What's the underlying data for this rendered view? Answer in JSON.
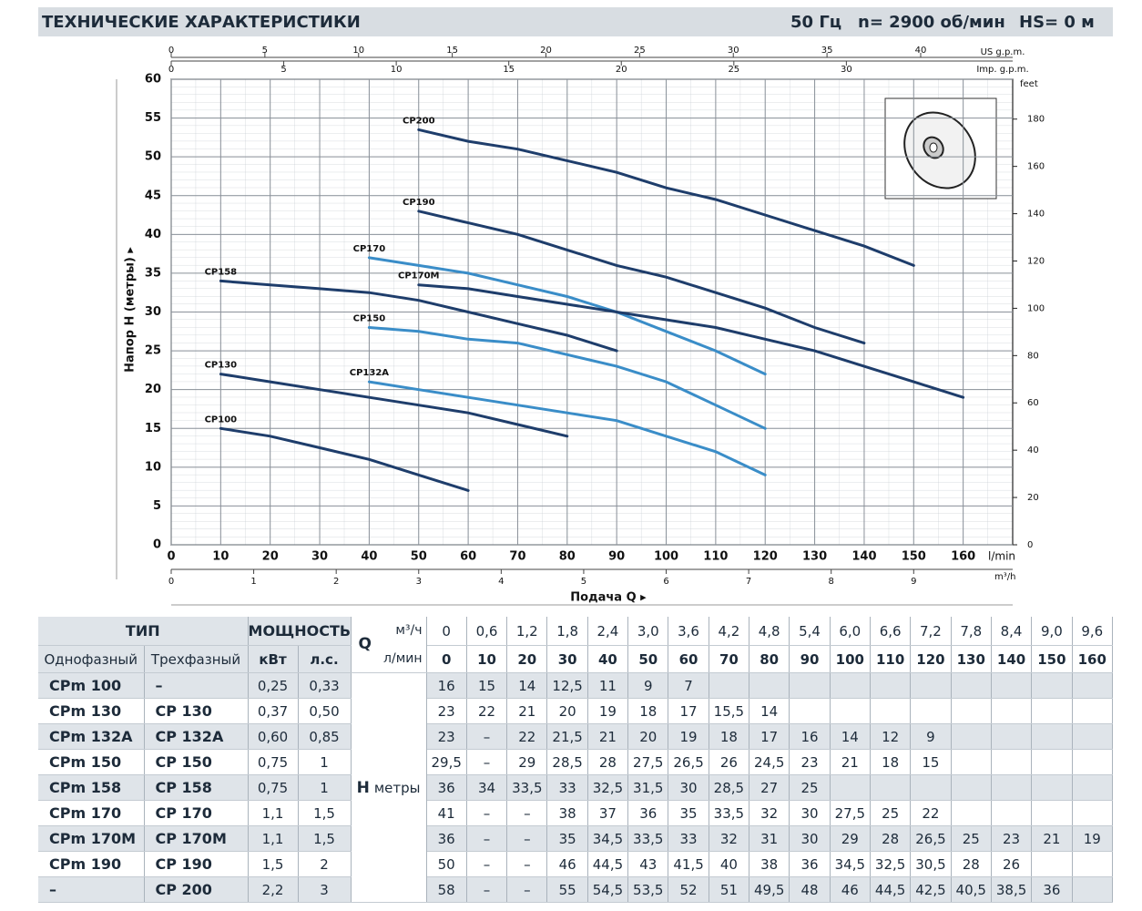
{
  "header": {
    "title": "ТЕХНИЧЕСКИЕ ХАРАКТЕРИСТИКИ",
    "frequency": "50 Гц",
    "speed": "n= 2900 об/мин",
    "hs": "HS= 0 м"
  },
  "chart_data": {
    "type": "line",
    "xlabel": "Подача Q ▸",
    "ylabel": "Напор H (метры) ▸",
    "x_unit": "l/min",
    "y2_unit": "feet",
    "x": [
      10,
      20,
      30,
      40,
      50,
      60,
      70,
      80,
      90,
      100,
      110,
      120,
      130,
      140,
      150,
      160
    ],
    "xlim": [
      0,
      170
    ],
    "xticks": [
      0,
      10,
      20,
      30,
      40,
      50,
      60,
      70,
      80,
      90,
      100,
      110,
      120,
      130,
      140,
      150,
      160
    ],
    "ylim": [
      0,
      60
    ],
    "yticks": [
      0,
      5,
      10,
      15,
      20,
      25,
      30,
      35,
      40,
      45,
      50,
      55,
      60
    ],
    "y2lim": [
      0,
      196.85
    ],
    "y2ticks": [
      0,
      20,
      40,
      60,
      80,
      100,
      120,
      140,
      160,
      180
    ],
    "top_axes": [
      {
        "unit": "US g.p.m.",
        "lim": [
          0,
          44.91
        ],
        "ticks": [
          0,
          5,
          10,
          15,
          20,
          25,
          30,
          35,
          40
        ]
      },
      {
        "unit": "Imp. g.p.m.",
        "lim": [
          0,
          37.39
        ],
        "ticks": [
          0,
          5,
          10,
          15,
          20,
          25,
          30
        ]
      }
    ],
    "bottom_axis2": {
      "unit": "m³/h",
      "lim": [
        0,
        10.2
      ],
      "ticks": [
        0,
        1,
        2,
        3,
        4,
        5,
        6,
        7,
        8,
        9
      ]
    },
    "grid": true,
    "series": [
      {
        "name": "CP200",
        "color": "#1e3d6b",
        "values": [
          null,
          null,
          null,
          null,
          53.5,
          52,
          51,
          49.5,
          48,
          46,
          44.5,
          42.5,
          40.5,
          38.5,
          36,
          null
        ]
      },
      {
        "name": "CP190",
        "color": "#1e3d6b",
        "values": [
          null,
          null,
          null,
          null,
          43,
          41.5,
          40,
          38,
          36,
          34.5,
          32.5,
          30.5,
          28,
          26,
          null,
          null
        ]
      },
      {
        "name": "CP170",
        "color": "#3a8dc8",
        "values": [
          null,
          null,
          null,
          37,
          36,
          35,
          33.5,
          32,
          30,
          27.5,
          25,
          22,
          null,
          null,
          null,
          null
        ]
      },
      {
        "name": "CP170M",
        "color": "#1e3d6b",
        "values": [
          null,
          null,
          null,
          null,
          33.5,
          33,
          32,
          31,
          30,
          29,
          28,
          26.5,
          25,
          23,
          21,
          19
        ]
      },
      {
        "name": "CP158",
        "color": "#1e3d6b",
        "values": [
          34,
          33.5,
          33,
          32.5,
          31.5,
          30,
          28.5,
          27,
          25,
          null,
          null,
          null,
          null,
          null,
          null,
          null
        ]
      },
      {
        "name": "CP150",
        "color": "#3a8dc8",
        "values": [
          null,
          null,
          null,
          28,
          27.5,
          26.5,
          26,
          24.5,
          23,
          21,
          18,
          15,
          null,
          null,
          null,
          null
        ]
      },
      {
        "name": "CP132A",
        "color": "#3a8dc8",
        "values": [
          null,
          null,
          null,
          21,
          20,
          19,
          18,
          17,
          16,
          14,
          12,
          9,
          null,
          null,
          null,
          null
        ]
      },
      {
        "name": "CP130",
        "color": "#1e3d6b",
        "values": [
          22,
          21,
          20,
          19,
          18,
          17,
          15.5,
          14,
          null,
          null,
          null,
          null,
          null,
          null,
          null,
          null
        ]
      },
      {
        "name": "CP100",
        "color": "#1e3d6b",
        "values": [
          15,
          14,
          12.5,
          11,
          9,
          7,
          null,
          null,
          null,
          null,
          null,
          null,
          null,
          null,
          null,
          null
        ]
      }
    ]
  },
  "table": {
    "type_header": "ТИП",
    "power_header": "МОЩНОСТЬ",
    "q_label": "Q",
    "q_units": [
      "м³/ч",
      "л/мин"
    ],
    "sub_headers": [
      "Однофазный",
      "Трехфазный",
      "кВт",
      "л.с."
    ],
    "q_m3h": [
      "0",
      "0,6",
      "1,2",
      "1,8",
      "2,4",
      "3,0",
      "3,6",
      "4,2",
      "4,8",
      "5,4",
      "6,0",
      "6,6",
      "7,2",
      "7,8",
      "8,4",
      "9,0",
      "9,6"
    ],
    "q_lmin": [
      "0",
      "10",
      "20",
      "30",
      "40",
      "50",
      "60",
      "70",
      "80",
      "90",
      "100",
      "110",
      "120",
      "130",
      "140",
      "150",
      "160"
    ],
    "h_label": "H",
    "h_unit": "метры",
    "rows": [
      [
        "CPm 100",
        "–",
        "0,25",
        "0,33",
        "16",
        "15",
        "14",
        "12,5",
        "11",
        "9",
        "7",
        null,
        null,
        null,
        null,
        null,
        null,
        null,
        null,
        null,
        null
      ],
      [
        "CPm 130",
        "CP 130",
        "0,37",
        "0,50",
        "23",
        "22",
        "21",
        "20",
        "19",
        "18",
        "17",
        "15,5",
        "14",
        null,
        null,
        null,
        null,
        null,
        null,
        null,
        null
      ],
      [
        "CPm 132A",
        "CP 132A",
        "0,60",
        "0,85",
        "23",
        "–",
        "22",
        "21,5",
        "21",
        "20",
        "19",
        "18",
        "17",
        "16",
        "14",
        "12",
        "9",
        null,
        null,
        null,
        null
      ],
      [
        "CPm 150",
        "CP 150",
        "0,75",
        "1",
        "29,5",
        "–",
        "29",
        "28,5",
        "28",
        "27,5",
        "26,5",
        "26",
        "24,5",
        "23",
        "21",
        "18",
        "15",
        null,
        null,
        null,
        null
      ],
      [
        "CPm 158",
        "CP 158",
        "0,75",
        "1",
        "36",
        "34",
        "33,5",
        "33",
        "32,5",
        "31,5",
        "30",
        "28,5",
        "27",
        "25",
        null,
        null,
        null,
        null,
        null,
        null,
        null
      ],
      [
        "CPm 170",
        "CP 170",
        "1,1",
        "1,5",
        "41",
        "–",
        "–",
        "38",
        "37",
        "36",
        "35",
        "33,5",
        "32",
        "30",
        "27,5",
        "25",
        "22",
        null,
        null,
        null,
        null
      ],
      [
        "CPm 170M",
        "CP 170M",
        "1,1",
        "1,5",
        "36",
        "–",
        "–",
        "35",
        "34,5",
        "33,5",
        "33",
        "32",
        "31",
        "30",
        "29",
        "28",
        "26,5",
        "25",
        "23",
        "21",
        "19"
      ],
      [
        "CPm 190",
        "CP 190",
        "1,5",
        "2",
        "50",
        "–",
        "–",
        "46",
        "44,5",
        "43",
        "41,5",
        "40",
        "38",
        "36",
        "34,5",
        "32,5",
        "30,5",
        "28",
        "26",
        null,
        null
      ],
      [
        "–",
        "CP 200",
        "2,2",
        "3",
        "58",
        "–",
        "–",
        "55",
        "54,5",
        "53,5",
        "52",
        "51",
        "49,5",
        "48",
        "46",
        "44,5",
        "42,5",
        "40,5",
        "38,5",
        "36",
        null
      ]
    ]
  }
}
